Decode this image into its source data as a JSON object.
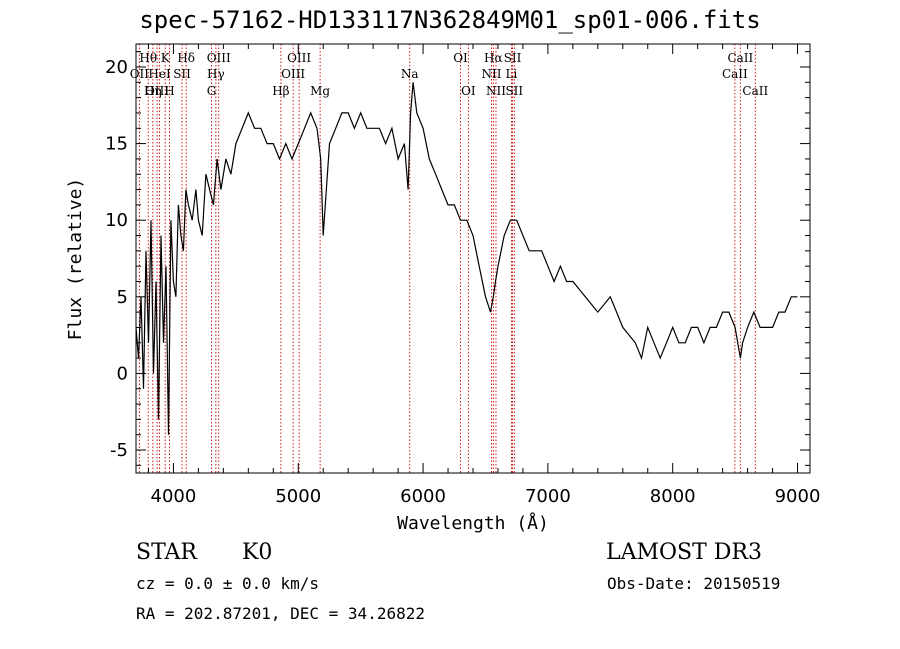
{
  "chart_data": {
    "type": "line",
    "title": "spec-57162-HD133117N362849M01_sp01-006.fits",
    "xlabel": "Wavelength (Å)",
    "ylabel": "Flux (relative)",
    "xlim": [
      3700,
      9100
    ],
    "ylim": [
      -6.5,
      21.5
    ],
    "xticks": [
      4000,
      5000,
      6000,
      7000,
      8000,
      9000
    ],
    "yticks": [
      -5,
      0,
      5,
      10,
      15,
      20
    ],
    "grid": false,
    "spectrum": {
      "x": [
        3700,
        3720,
        3740,
        3760,
        3780,
        3800,
        3820,
        3840,
        3860,
        3880,
        3900,
        3920,
        3940,
        3960,
        3980,
        4000,
        4020,
        4040,
        4060,
        4080,
        4100,
        4120,
        4150,
        4180,
        4200,
        4230,
        4260,
        4290,
        4320,
        4350,
        4380,
        4420,
        4460,
        4500,
        4550,
        4600,
        4650,
        4700,
        4750,
        4800,
        4850,
        4900,
        4950,
        5000,
        5050,
        5100,
        5150,
        5180,
        5200,
        5250,
        5300,
        5350,
        5400,
        5450,
        5500,
        5550,
        5600,
        5650,
        5700,
        5750,
        5800,
        5850,
        5880,
        5900,
        5920,
        5950,
        6000,
        6050,
        6100,
        6150,
        6200,
        6250,
        6300,
        6350,
        6400,
        6450,
        6500,
        6540,
        6563,
        6580,
        6600,
        6650,
        6700,
        6750,
        6800,
        6850,
        6900,
        6950,
        7000,
        7050,
        7100,
        7150,
        7200,
        7300,
        7400,
        7500,
        7600,
        7700,
        7750,
        7800,
        7850,
        7900,
        7950,
        8000,
        8050,
        8100,
        8150,
        8200,
        8250,
        8300,
        8350,
        8400,
        8450,
        8500,
        8542,
        8560,
        8600,
        8650,
        8700,
        8750,
        8800,
        8850,
        8900,
        8950,
        9000
      ],
      "y": [
        3,
        1,
        5,
        -1,
        8,
        2,
        10,
        0,
        6,
        -3,
        9,
        2,
        7,
        -4,
        10,
        6,
        5,
        11,
        9,
        8,
        12,
        11,
        10,
        12,
        10,
        9,
        13,
        12,
        11,
        14,
        12,
        14,
        13,
        15,
        16,
        17,
        16,
        16,
        15,
        15,
        14,
        15,
        14,
        15,
        16,
        17,
        16,
        14,
        9,
        15,
        16,
        17,
        17,
        16,
        17,
        16,
        16,
        16,
        15,
        16,
        14,
        15,
        12,
        17,
        19,
        17,
        16,
        14,
        13,
        12,
        11,
        11,
        10,
        10,
        9,
        7,
        5,
        4,
        5,
        6,
        7,
        9,
        10,
        10,
        9,
        8,
        8,
        8,
        7,
        6,
        7,
        6,
        6,
        5,
        4,
        5,
        3,
        2,
        1,
        3,
        2,
        1,
        2,
        3,
        2,
        2,
        3,
        3,
        2,
        3,
        3,
        4,
        4,
        3,
        1,
        2,
        3,
        4,
        3,
        3,
        3,
        4,
        4,
        5,
        5
      ]
    },
    "lines": [
      {
        "label": "Hθ",
        "x": 3798,
        "row": 1
      },
      {
        "label": "OII",
        "x": 3727,
        "row": 2
      },
      {
        "label": "OIII",
        "x": 3869,
        "row": 3
      },
      {
        "label": "K",
        "x": 3934,
        "row": 1
      },
      {
        "label": "HeI",
        "x": 3889,
        "row": 2
      },
      {
        "label": "Hη",
        "x": 3835,
        "row": 3
      },
      {
        "label": "Hδ",
        "x": 4102,
        "row": 1
      },
      {
        "label": "SII",
        "x": 4069,
        "row": 2
      },
      {
        "label": "H",
        "x": 3968,
        "row": 3
      },
      {
        "label": "OIII",
        "x": 4363,
        "row": 1
      },
      {
        "label": "Hγ",
        "x": 4340,
        "row": 2
      },
      {
        "label": "G",
        "x": 4305,
        "row": 3
      },
      {
        "label": "OIII",
        "x": 5007,
        "row": 1
      },
      {
        "label": "OIII",
        "x": 4959,
        "row": 2
      },
      {
        "label": "Hβ",
        "x": 4861,
        "row": 3
      },
      {
        "label": "Mg",
        "x": 5175,
        "row": 3
      },
      {
        "label": "Na",
        "x": 5893,
        "row": 2
      },
      {
        "label": "OI",
        "x": 6300,
        "row": 1
      },
      {
        "label": "OI",
        "x": 6363,
        "row": 3
      },
      {
        "label": "Hα",
        "x": 6563,
        "row": 1
      },
      {
        "label": "SII",
        "x": 6717,
        "row": 1
      },
      {
        "label": "NII",
        "x": 6548,
        "row": 2
      },
      {
        "label": "Li",
        "x": 6708,
        "row": 2
      },
      {
        "label": "NII",
        "x": 6584,
        "row": 3
      },
      {
        "label": "SII",
        "x": 6731,
        "row": 3
      },
      {
        "label": "CaII",
        "x": 8542,
        "row": 1
      },
      {
        "label": "CaII",
        "x": 8498,
        "row": 2
      },
      {
        "label": "CaII",
        "x": 8662,
        "row": 3
      }
    ]
  },
  "info": {
    "class": "STAR",
    "subclass": "K0",
    "survey": "LAMOST DR3",
    "velocity": "cz = 0.0 ± 0.0 km/s",
    "obs_date": "Obs-Date: 20150519",
    "coords": "RA = 202.87201, DEC =  34.26822"
  },
  "colors": {
    "spectrum": "#000000",
    "line_markers": "#cc0000",
    "axes": "#000000",
    "background": "#ffffff"
  }
}
